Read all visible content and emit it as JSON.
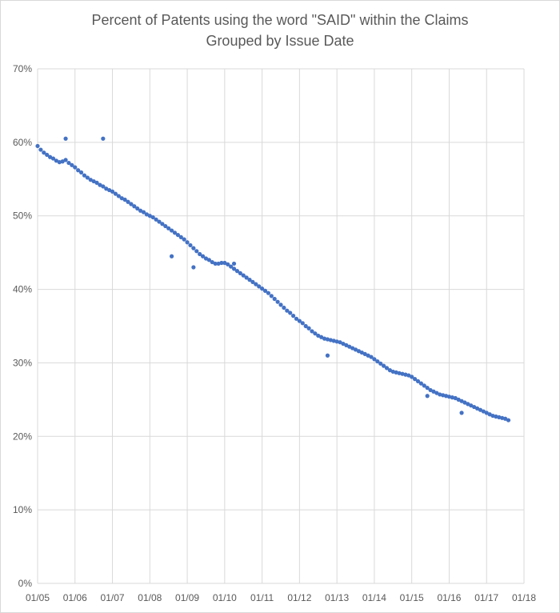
{
  "chart_data": {
    "type": "scatter",
    "title": "Percent of Patents using the word \"SAID\" within the Claims",
    "subtitle": "Grouped by Issue Date",
    "xlabel": "",
    "ylabel": "",
    "x_ticks": [
      "01/05",
      "01/06",
      "01/07",
      "01/08",
      "01/09",
      "01/10",
      "01/11",
      "01/12",
      "01/13",
      "01/14",
      "01/15",
      "01/16",
      "01/17",
      "01/18"
    ],
    "y_ticks": [
      "0%",
      "10%",
      "20%",
      "30%",
      "40%",
      "50%",
      "60%",
      "70%"
    ],
    "xlim": [
      "2005-01",
      "2018-01"
    ],
    "ylim": [
      0,
      70
    ],
    "grid": true,
    "legend": "none",
    "marker_color": "#4472c4",
    "series": [
      {
        "x": [
          "2005-01",
          "2005-02",
          "2005-03",
          "2005-04",
          "2005-05",
          "2005-06",
          "2005-07",
          "2005-08",
          "2005-09",
          "2005-10",
          "2005-11",
          "2005-12",
          "2006-01",
          "2006-02",
          "2006-03",
          "2006-04",
          "2006-05",
          "2006-06",
          "2006-07",
          "2006-08",
          "2006-09",
          "2006-10",
          "2006-11",
          "2006-12",
          "2007-01",
          "2007-02",
          "2007-03",
          "2007-04",
          "2007-05",
          "2007-06",
          "2007-07",
          "2007-08",
          "2007-09",
          "2007-10",
          "2007-11",
          "2007-12",
          "2008-01",
          "2008-02",
          "2008-03",
          "2008-04",
          "2008-05",
          "2008-06",
          "2008-07",
          "2008-08",
          "2008-09",
          "2008-10",
          "2008-11",
          "2008-12",
          "2009-01",
          "2009-02",
          "2009-03",
          "2009-04",
          "2009-05",
          "2009-06",
          "2009-07",
          "2009-08",
          "2009-09",
          "2009-10",
          "2009-11",
          "2009-12",
          "2010-01",
          "2010-02",
          "2010-03",
          "2010-04",
          "2010-05",
          "2010-06",
          "2010-07",
          "2010-08",
          "2010-09",
          "2010-10",
          "2010-11",
          "2010-12",
          "2011-01",
          "2011-02",
          "2011-03",
          "2011-04",
          "2011-05",
          "2011-06",
          "2011-07",
          "2011-08",
          "2011-09",
          "2011-10",
          "2011-11",
          "2011-12",
          "2012-01",
          "2012-02",
          "2012-03",
          "2012-04",
          "2012-05",
          "2012-06",
          "2012-07",
          "2012-08",
          "2012-09",
          "2012-10",
          "2012-11",
          "2012-12",
          "2013-01",
          "2013-02",
          "2013-03",
          "2013-04",
          "2013-05",
          "2013-06",
          "2013-07",
          "2013-08",
          "2013-09",
          "2013-10",
          "2013-11",
          "2013-12",
          "2014-01",
          "2014-02",
          "2014-03",
          "2014-04",
          "2014-05",
          "2014-06",
          "2014-07",
          "2014-08",
          "2014-09",
          "2014-10",
          "2014-11",
          "2014-12",
          "2015-01",
          "2015-02",
          "2015-03",
          "2015-04",
          "2015-05",
          "2015-06",
          "2015-07",
          "2015-08",
          "2015-09",
          "2015-10",
          "2015-11",
          "2015-12",
          "2016-01",
          "2016-02",
          "2016-03",
          "2016-04",
          "2016-05",
          "2016-06",
          "2016-07",
          "2016-08",
          "2016-09",
          "2016-10",
          "2016-11",
          "2016-12",
          "2017-01",
          "2017-02",
          "2017-03",
          "2017-04",
          "2017-05",
          "2017-06",
          "2017-07",
          "2017-08",
          "2005-10",
          "2006-10",
          "2008-08",
          "2009-03",
          "2010-04",
          "2012-10",
          "2015-06",
          "2016-05"
        ],
        "y": [
          59.5,
          59.0,
          58.6,
          58.3,
          58.0,
          57.8,
          57.5,
          57.3,
          57.4,
          57.6,
          57.2,
          56.9,
          56.6,
          56.2,
          55.9,
          55.5,
          55.2,
          54.9,
          54.7,
          54.5,
          54.2,
          54.0,
          53.7,
          53.5,
          53.3,
          53.0,
          52.7,
          52.4,
          52.2,
          51.9,
          51.6,
          51.3,
          51.0,
          50.7,
          50.5,
          50.2,
          50.0,
          49.8,
          49.5,
          49.2,
          48.9,
          48.6,
          48.3,
          48.0,
          47.7,
          47.4,
          47.1,
          46.8,
          46.4,
          46.0,
          45.6,
          45.2,
          44.8,
          44.5,
          44.2,
          44.0,
          43.7,
          43.5,
          43.5,
          43.6,
          43.6,
          43.4,
          43.1,
          42.8,
          42.5,
          42.2,
          41.9,
          41.6,
          41.3,
          41.0,
          40.7,
          40.4,
          40.1,
          39.8,
          39.5,
          39.1,
          38.7,
          38.3,
          37.9,
          37.5,
          37.1,
          36.8,
          36.4,
          36.0,
          35.7,
          35.4,
          35.0,
          34.7,
          34.3,
          34.0,
          33.7,
          33.5,
          33.3,
          33.2,
          33.1,
          33.0,
          32.9,
          32.8,
          32.6,
          32.4,
          32.2,
          32.0,
          31.8,
          31.6,
          31.4,
          31.2,
          31.0,
          30.8,
          30.5,
          30.2,
          29.9,
          29.6,
          29.3,
          29.0,
          28.8,
          28.7,
          28.6,
          28.5,
          28.4,
          28.3,
          28.1,
          27.8,
          27.5,
          27.2,
          26.9,
          26.6,
          26.3,
          26.1,
          25.9,
          25.7,
          25.6,
          25.5,
          25.4,
          25.3,
          25.2,
          25.0,
          24.8,
          24.6,
          24.4,
          24.2,
          24.0,
          23.8,
          23.6,
          23.4,
          23.2,
          23.0,
          22.8,
          22.7,
          22.6,
          22.5,
          22.4,
          22.2,
          60.5,
          60.5,
          44.5,
          43.0,
          43.5,
          31.0,
          25.5,
          23.2
        ]
      }
    ]
  }
}
